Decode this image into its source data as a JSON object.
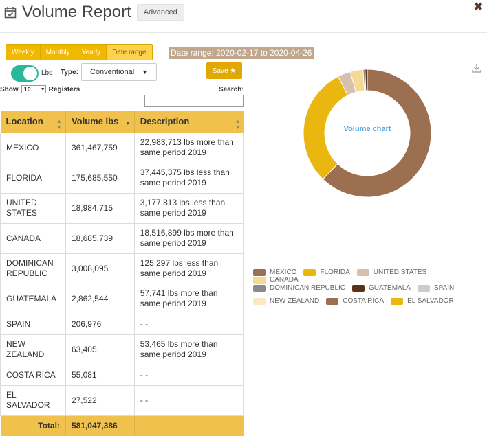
{
  "header": {
    "title": "Volume Report",
    "advanced_label": "Advanced",
    "close_glyph": "✖"
  },
  "controls": {
    "periods": [
      "Weekly",
      "Monthly",
      "Yearly",
      "Date range"
    ],
    "active_period": "Date range",
    "date_range_text": "Date range: 2020-02-17 to 2020-04-26",
    "unit_toggle_label": "Lbs",
    "type_label": "Type:",
    "type_value": "Conventional",
    "save_label": "Save ★",
    "show_label": "Show",
    "show_value": "10",
    "registers_label": "Registers",
    "search_label": "Search:"
  },
  "table": {
    "headers": [
      "Location",
      "Volume lbs",
      "Description"
    ],
    "rows": [
      {
        "location": "MEXICO",
        "volume": "361,467,759",
        "description": "22,983,713 lbs more than same period 2019"
      },
      {
        "location": "FLORIDA",
        "volume": "175,685,550",
        "description": "37,445,375 lbs less than same period 2019"
      },
      {
        "location": "UNITED STATES",
        "volume": "18,984,715",
        "description": "3,177,813 lbs less than same period 2019"
      },
      {
        "location": "CANADA",
        "volume": "18,685,739",
        "description": "18,516,899 lbs more than same period 2019"
      },
      {
        "location": "DOMINICAN REPUBLIC",
        "volume": "3,008,095",
        "description": "125,297 lbs less than same period 2019"
      },
      {
        "location": "GUATEMALA",
        "volume": "2,862,544",
        "description": "57,741 lbs more than same period 2019"
      },
      {
        "location": "SPAIN",
        "volume": "206,976",
        "description": "- -"
      },
      {
        "location": "NEW ZEALAND",
        "volume": "63,405",
        "description": "53,465 lbs more than same period 2019"
      },
      {
        "location": "COSTA RICA",
        "volume": "55,081",
        "description": "- -"
      },
      {
        "location": "EL SALVADOR",
        "volume": "27,522",
        "description": "- -"
      }
    ],
    "total_label": "Total:",
    "total_value": "581,047,386"
  },
  "chart_data": {
    "type": "pie",
    "title": "Volume chart",
    "categories": [
      "MEXICO",
      "FLORIDA",
      "UNITED STATES",
      "CANADA",
      "DOMINICAN REPUBLIC",
      "GUATEMALA",
      "SPAIN",
      "NEW ZEALAND",
      "COSTA RICA",
      "EL SALVADOR"
    ],
    "values": [
      361467759,
      175685550,
      18984715,
      18685739,
      3008095,
      2862544,
      206976,
      63405,
      55081,
      27522
    ],
    "colors": [
      "#9c6f50",
      "#eab710",
      "#d8c0ae",
      "#f6d992",
      "#8a8a8a",
      "#5a3217",
      "#cccccc",
      "#fae7c3",
      "#9c6f50",
      "#eab710"
    ],
    "legend_position": "bottom"
  }
}
